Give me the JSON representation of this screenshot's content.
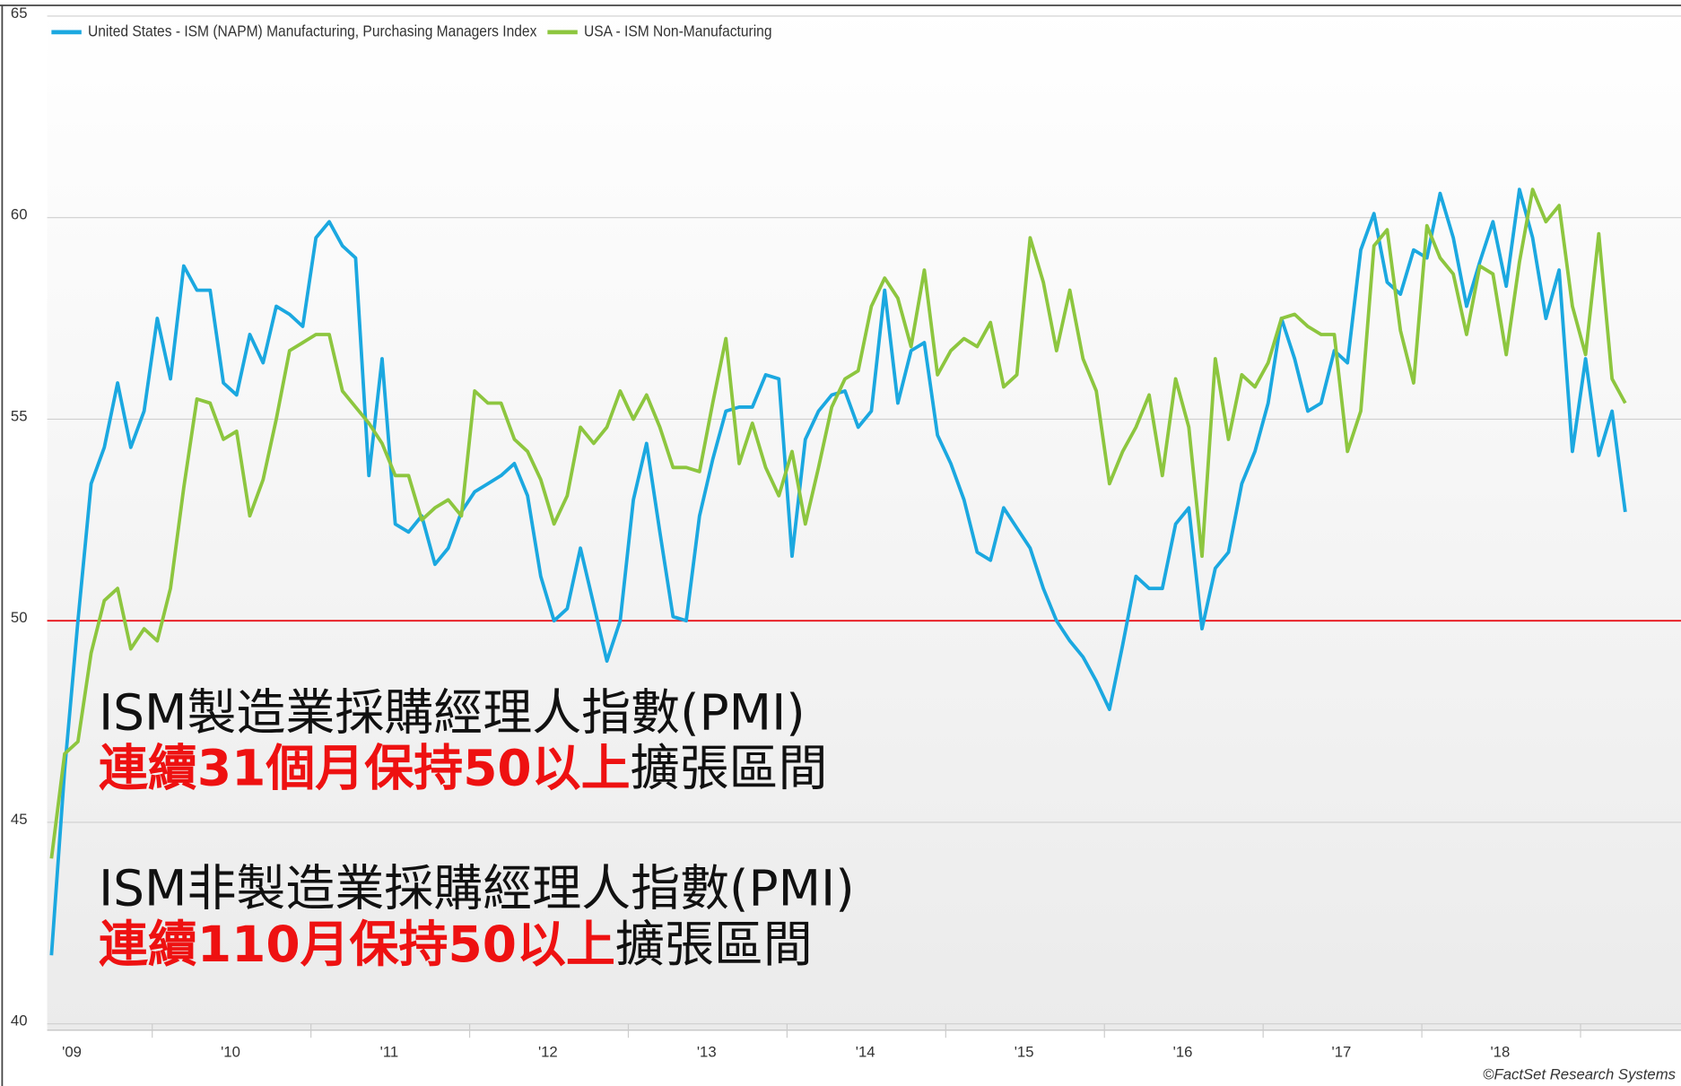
{
  "chart_data": {
    "type": "line",
    "categories": [
      "'09",
      null,
      null,
      null,
      null,
      null,
      null,
      null,
      null,
      null,
      null,
      null,
      "'10",
      null,
      null,
      null,
      null,
      null,
      null,
      null,
      null,
      null,
      null,
      null,
      "'11",
      null,
      null,
      null,
      null,
      null,
      null,
      null,
      null,
      null,
      null,
      null,
      "'12",
      null,
      null,
      null,
      null,
      null,
      null,
      null,
      null,
      null,
      null,
      null,
      "'13",
      null,
      null,
      null,
      null,
      null,
      null,
      null,
      null,
      null,
      null,
      null,
      "'14",
      null,
      null,
      null,
      null,
      null,
      null,
      null,
      null,
      null,
      null,
      null,
      "'15",
      null,
      null,
      null,
      null,
      null,
      null,
      null,
      null,
      null,
      null,
      null,
      "'16",
      null,
      null,
      null,
      null,
      null,
      null,
      null,
      null,
      null,
      null,
      null,
      "'17",
      null,
      null,
      null,
      null,
      null,
      null,
      null,
      null,
      null,
      null,
      null,
      "'18",
      null,
      null,
      null,
      null,
      null,
      null,
      null,
      null,
      null,
      null,
      null
    ],
    "series": [
      {
        "name": "United States - ISM (NAPM) Manufacturing, Purchasing Managers Index",
        "color": "#1ba8e0",
        "values": [
          41.7,
          46.3,
          50.0,
          53.4,
          54.3,
          55.9,
          54.3,
          55.2,
          57.5,
          56.0,
          58.8,
          58.2,
          58.2,
          55.9,
          55.6,
          57.1,
          56.4,
          57.8,
          57.6,
          57.3,
          59.5,
          59.9,
          59.3,
          59.0,
          53.6,
          56.5,
          52.4,
          52.2,
          52.6,
          51.4,
          51.8,
          52.7,
          53.2,
          53.4,
          53.6,
          53.9,
          53.1,
          51.1,
          50.0,
          50.3,
          51.8,
          50.4,
          49.0,
          50.0,
          53.0,
          54.4,
          52.2,
          50.1,
          50.0,
          52.6,
          54.0,
          55.2,
          55.3,
          55.3,
          56.1,
          56.0,
          51.6,
          54.5,
          55.2,
          55.6,
          55.7,
          54.8,
          55.2,
          58.2,
          55.4,
          56.7,
          56.9,
          54.6,
          53.9,
          53.0,
          51.7,
          51.5,
          52.8,
          52.3,
          51.8,
          50.8,
          50.0,
          49.5,
          49.1,
          48.5,
          47.8,
          49.4,
          51.1,
          50.8,
          50.8,
          52.4,
          52.8,
          49.8,
          51.3,
          51.7,
          53.4,
          54.2,
          55.4,
          57.5,
          56.5,
          55.2,
          55.4,
          56.7,
          56.4,
          59.2,
          60.1,
          58.4,
          58.1,
          59.2,
          59.0,
          60.6,
          59.5,
          57.8,
          58.9,
          59.9,
          58.3,
          60.7,
          59.5,
          57.5,
          58.7,
          54.2,
          56.5,
          54.1,
          55.2,
          52.7
        ]
      },
      {
        "name": "USA - ISM Non-Manufacturing",
        "color": "#8dc63f",
        "values": [
          44.1,
          46.7,
          47.0,
          49.2,
          50.5,
          50.8,
          49.3,
          49.8,
          49.5,
          50.8,
          53.3,
          55.5,
          55.4,
          54.5,
          54.7,
          52.6,
          53.5,
          55.0,
          56.7,
          56.9,
          57.1,
          57.1,
          55.7,
          55.3,
          54.9,
          54.4,
          53.6,
          53.6,
          52.5,
          52.8,
          53.0,
          52.6,
          55.7,
          55.4,
          55.4,
          54.5,
          54.2,
          53.5,
          52.4,
          53.1,
          54.8,
          54.4,
          54.8,
          55.7,
          55.0,
          55.6,
          54.8,
          53.8,
          53.8,
          53.7,
          55.4,
          57.0,
          53.9,
          54.9,
          53.8,
          53.1,
          54.2,
          52.4,
          53.8,
          55.3,
          56.0,
          56.2,
          57.8,
          58.5,
          58.0,
          56.8,
          58.7,
          56.1,
          56.7,
          57.0,
          56.8,
          57.4,
          55.8,
          56.1,
          59.5,
          58.4,
          56.7,
          58.2,
          56.5,
          55.7,
          53.4,
          54.2,
          54.8,
          55.6,
          53.6,
          56.0,
          54.8,
          51.6,
          56.5,
          54.5,
          56.1,
          55.8,
          56.4,
          57.5,
          57.6,
          57.3,
          57.1,
          57.1,
          54.2,
          55.2,
          59.3,
          59.7,
          57.2,
          55.9,
          59.8,
          59.0,
          58.6,
          57.1,
          58.8,
          58.6,
          56.6,
          58.9,
          60.7,
          59.9,
          60.3,
          57.8,
          56.6,
          59.6,
          56.0,
          55.4
        ]
      }
    ],
    "ylim": [
      40,
      65
    ],
    "yticks": [
      40,
      45,
      50,
      55,
      60,
      65
    ],
    "grid": true,
    "legend": "top-left",
    "reference_line": {
      "value": 50,
      "color": "#e8141b"
    },
    "annotations": [
      [
        {
          "text": "ISM製造業採購經理人指數(PMI)",
          "color": "#111111",
          "bold": false
        }
      ],
      [
        {
          "text": "連續31個月保持50以上",
          "color": "#ee1111",
          "bold": true
        },
        {
          "text": "擴張區間",
          "color": "#111111",
          "bold": false
        }
      ],
      [
        {
          "text": "ISM非製造業採購經理人指數(PMI)",
          "color": "#111111",
          "bold": false
        }
      ],
      [
        {
          "text": "連續110月保持50以上",
          "color": "#ee1111",
          "bold": true
        },
        {
          "text": "擴張區間",
          "color": "#111111",
          "bold": false
        }
      ]
    ],
    "source": "©FactSet Research Systems"
  }
}
